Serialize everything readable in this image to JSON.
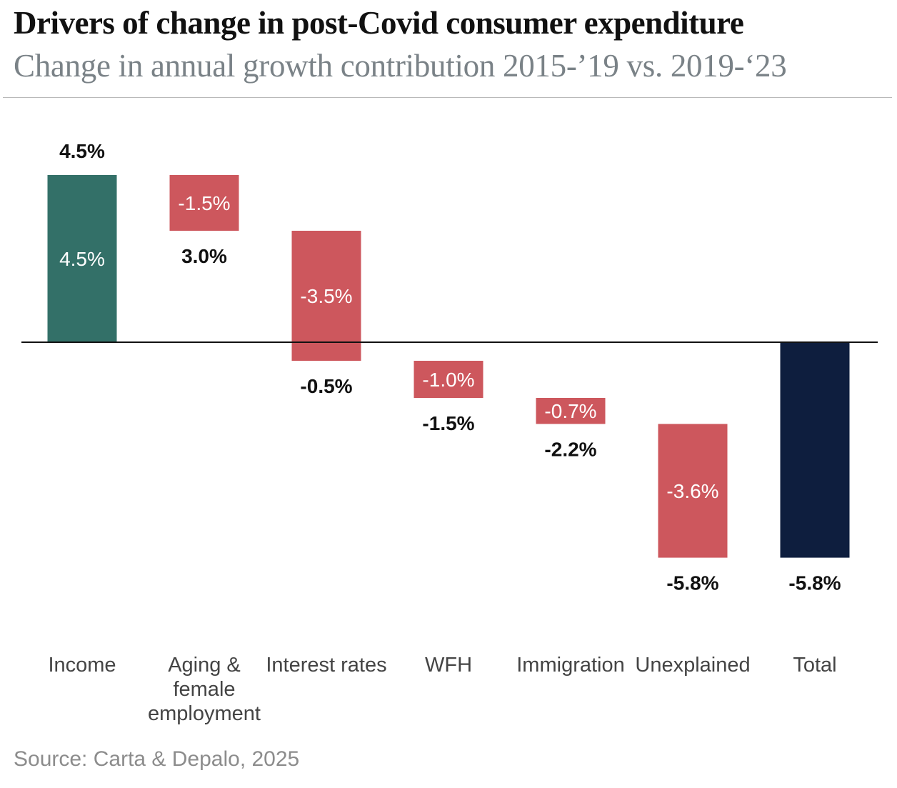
{
  "header": {
    "title": "Drivers of change in post-Covid consumer expenditure",
    "subtitle": "Change in annual growth contribution 2015-’19 vs. 2019-‘23"
  },
  "footer": {
    "source": "Source: Carta & Depalo, 2025"
  },
  "colors": {
    "positive": "#337068",
    "negative": "#cd575d",
    "total": "#0e1e3e",
    "label_dark": "#111111",
    "label_light": "#ffffff",
    "axis_label": "#444444"
  },
  "chart_data": {
    "type": "bar",
    "subtype": "waterfall",
    "title": "Drivers of change in post-Covid consumer expenditure",
    "subtitle": "Change in annual growth contribution 2015-’19 vs. 2019-‘23",
    "ylim": [
      -6.5,
      5.5
    ],
    "grid": false,
    "legend": "none",
    "categories": [
      {
        "label": [
          "Income"
        ],
        "kind": "increase",
        "value": 4.5,
        "start": 0.0,
        "end": 4.5,
        "bar_label": "4.5%",
        "running_label": "4.5%",
        "running_label_position": "above"
      },
      {
        "label": [
          "Aging &",
          "female",
          "employment"
        ],
        "kind": "decrease",
        "value": -1.5,
        "start": 4.5,
        "end": 3.0,
        "bar_label": "-1.5%",
        "running_label": "3.0%",
        "running_label_position": "below"
      },
      {
        "label": [
          "Interest rates"
        ],
        "kind": "decrease",
        "value": -3.5,
        "start": 3.0,
        "end": -0.5,
        "bar_label": "-3.5%",
        "running_label": "-0.5%",
        "running_label_position": "below"
      },
      {
        "label": [
          "WFH"
        ],
        "kind": "decrease",
        "value": -1.0,
        "start": -0.5,
        "end": -1.5,
        "bar_label": "-1.0%",
        "running_label": "-1.5%",
        "running_label_position": "below"
      },
      {
        "label": [
          "Immigration"
        ],
        "kind": "decrease",
        "value": -0.7,
        "start": -1.5,
        "end": -2.2,
        "bar_label": "-0.7%",
        "running_label": "-2.2%",
        "running_label_position": "below"
      },
      {
        "label": [
          "Unexplained"
        ],
        "kind": "decrease",
        "value": -3.6,
        "start": -2.2,
        "end": -5.8,
        "bar_label": "-3.6%",
        "running_label": "-5.8%",
        "running_label_position": "below"
      },
      {
        "label": [
          "Total"
        ],
        "kind": "total",
        "value": -5.8,
        "start": 0.0,
        "end": -5.8,
        "bar_label": "",
        "running_label": "-5.8%",
        "running_label_position": "below"
      }
    ]
  }
}
